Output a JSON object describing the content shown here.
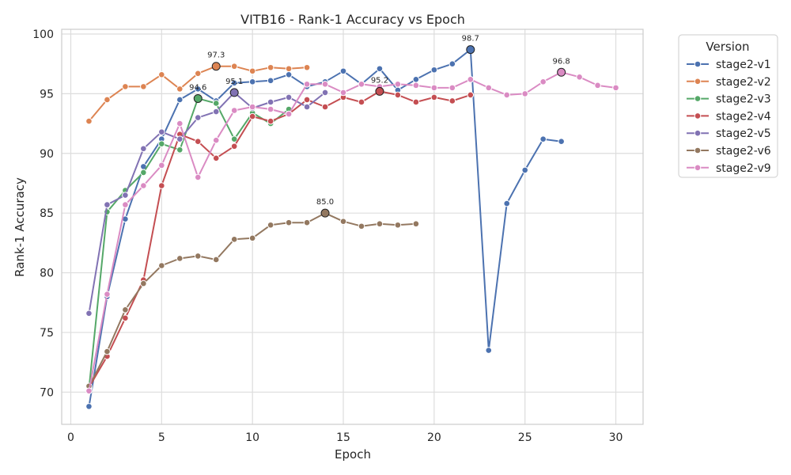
{
  "chart_data": {
    "type": "line",
    "title": "VITB16 - Rank-1 Accuracy vs Epoch",
    "xlabel": "Epoch",
    "ylabel": "Rank-1 Accuracy",
    "xlim": [
      -0.5,
      31.5
    ],
    "ylim": [
      67.3,
      100.4
    ],
    "xticks": [
      0,
      5,
      10,
      15,
      20,
      25,
      30
    ],
    "yticks": [
      70,
      75,
      80,
      85,
      90,
      95,
      100
    ],
    "grid": true,
    "legend": {
      "title": "Version",
      "placement": "outside-right-top"
    },
    "series": [
      {
        "name": "stage2-v1",
        "color": "#4c72b0",
        "x": [
          1,
          2,
          3,
          4,
          5,
          6,
          7,
          8,
          9,
          10,
          11,
          12,
          13,
          14,
          15,
          16,
          17,
          18,
          19,
          20,
          21,
          22,
          23,
          24,
          25,
          26,
          27
        ],
        "y": [
          68.8,
          78.0,
          84.5,
          88.9,
          91.2,
          94.5,
          95.4,
          94.4,
          95.9,
          96.0,
          96.1,
          96.6,
          95.6,
          96.0,
          96.9,
          95.8,
          97.1,
          95.3,
          96.2,
          97.0,
          97.5,
          98.7,
          73.5,
          85.8,
          88.6,
          91.2,
          91.0
        ],
        "best": {
          "x": 22,
          "y": 98.7,
          "label": "98.7"
        }
      },
      {
        "name": "stage2-v2",
        "color": "#dd8452",
        "x": [
          1,
          2,
          3,
          4,
          5,
          6,
          7,
          8,
          9,
          10,
          11,
          12,
          13
        ],
        "y": [
          92.7,
          94.5,
          95.6,
          95.6,
          96.6,
          95.4,
          96.7,
          97.3,
          97.3,
          96.9,
          97.2,
          97.1,
          97.2
        ],
        "best": {
          "x": 8,
          "y": 97.3,
          "label": "97.3"
        }
      },
      {
        "name": "stage2-v3",
        "color": "#55a868",
        "x": [
          1,
          2,
          3,
          4,
          5,
          6,
          7,
          8,
          9,
          10,
          11,
          12
        ],
        "y": [
          70.3,
          85.1,
          86.9,
          88.4,
          90.8,
          90.3,
          94.6,
          94.2,
          91.2,
          93.4,
          92.5,
          93.7
        ],
        "best": {
          "x": 7,
          "y": 94.6,
          "label": "94.6"
        }
      },
      {
        "name": "stage2-v4",
        "color": "#c44e52",
        "x": [
          1,
          2,
          3,
          4,
          5,
          6,
          7,
          8,
          9,
          10,
          11,
          12,
          13,
          14,
          15,
          16,
          17,
          18,
          19,
          20,
          21,
          22
        ],
        "y": [
          70.4,
          73.0,
          76.2,
          79.4,
          87.3,
          91.6,
          91.0,
          89.6,
          90.6,
          93.1,
          92.7,
          93.3,
          94.5,
          93.9,
          94.7,
          94.3,
          95.2,
          94.9,
          94.3,
          94.7,
          94.4,
          94.9
        ],
        "best": {
          "x": 17,
          "y": 95.2,
          "label": "95.2"
        }
      },
      {
        "name": "stage2-v5",
        "color": "#8172b3",
        "x": [
          1,
          2,
          3,
          4,
          5,
          6,
          7,
          8,
          9,
          10,
          11,
          12,
          13,
          14
        ],
        "y": [
          76.6,
          85.7,
          86.5,
          90.4,
          91.8,
          91.2,
          93.0,
          93.5,
          95.1,
          93.8,
          94.3,
          94.7,
          93.9,
          95.1
        ],
        "best": {
          "x": 9,
          "y": 95.1,
          "label": "95.1"
        }
      },
      {
        "name": "stage2-v6",
        "color": "#937860",
        "x": [
          1,
          2,
          3,
          4,
          5,
          6,
          7,
          8,
          9,
          10,
          11,
          12,
          13,
          14,
          15,
          16,
          17,
          18,
          19
        ],
        "y": [
          70.5,
          73.4,
          76.9,
          79.1,
          80.6,
          81.2,
          81.4,
          81.1,
          82.8,
          82.9,
          84.0,
          84.2,
          84.2,
          85.0,
          84.3,
          83.9,
          84.1,
          84.0,
          84.1
        ],
        "best": {
          "x": 14,
          "y": 85.0,
          "label": "85.0"
        }
      },
      {
        "name": "stage2-v9",
        "color": "#da8bc3",
        "x": [
          1,
          2,
          3,
          4,
          5,
          6,
          7,
          8,
          9,
          10,
          11,
          12,
          13,
          14,
          15,
          16,
          17,
          18,
          19,
          20,
          21,
          22,
          23,
          24,
          25,
          26,
          27,
          28,
          29,
          30
        ],
        "y": [
          70.1,
          78.2,
          85.7,
          87.3,
          89.0,
          92.5,
          88.0,
          91.1,
          93.6,
          93.9,
          93.7,
          93.3,
          95.8,
          95.8,
          95.1,
          95.8,
          95.6,
          95.8,
          95.7,
          95.5,
          95.5,
          96.2,
          95.5,
          94.9,
          95.0,
          96.0,
          96.8,
          96.4,
          95.7,
          95.5
        ],
        "best": {
          "x": 27,
          "y": 96.8,
          "label": "96.8"
        }
      }
    ]
  }
}
